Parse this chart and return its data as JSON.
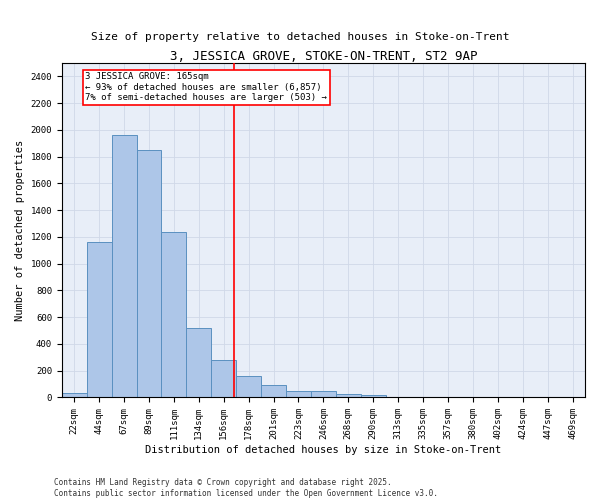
{
  "title": "3, JESSICA GROVE, STOKE-ON-TRENT, ST2 9AP",
  "subtitle": "Size of property relative to detached houses in Stoke-on-Trent",
  "xlabel": "Distribution of detached houses by size in Stoke-on-Trent",
  "ylabel": "Number of detached properties",
  "categories": [
    "22sqm",
    "44sqm",
    "67sqm",
    "89sqm",
    "111sqm",
    "134sqm",
    "156sqm",
    "178sqm",
    "201sqm",
    "223sqm",
    "246sqm",
    "268sqm",
    "290sqm",
    "313sqm",
    "335sqm",
    "357sqm",
    "380sqm",
    "402sqm",
    "424sqm",
    "447sqm",
    "469sqm"
  ],
  "values": [
    30,
    1160,
    1960,
    1850,
    1240,
    520,
    280,
    160,
    95,
    50,
    45,
    25,
    20,
    0,
    0,
    0,
    0,
    0,
    0,
    0,
    0
  ],
  "bar_color": "#adc6e8",
  "bar_edge_color": "#5a90c0",
  "vline_color": "red",
  "annotation_text": "3 JESSICA GROVE: 165sqm\n← 93% of detached houses are smaller (6,857)\n7% of semi-detached houses are larger (503) →",
  "annotation_box_color": "white",
  "annotation_box_edge_color": "red",
  "ylim": [
    0,
    2500
  ],
  "yticks": [
    0,
    200,
    400,
    600,
    800,
    1000,
    1200,
    1400,
    1600,
    1800,
    2000,
    2200,
    2400
  ],
  "grid_color": "#d0d8e8",
  "background_color": "#e8eef8",
  "footer1": "Contains HM Land Registry data © Crown copyright and database right 2025.",
  "footer2": "Contains public sector information licensed under the Open Government Licence v3.0.",
  "title_fontsize": 9,
  "subtitle_fontsize": 8,
  "xlabel_fontsize": 7.5,
  "ylabel_fontsize": 7.5,
  "tick_fontsize": 6.5,
  "annotation_fontsize": 6.5,
  "footer_fontsize": 5.5
}
